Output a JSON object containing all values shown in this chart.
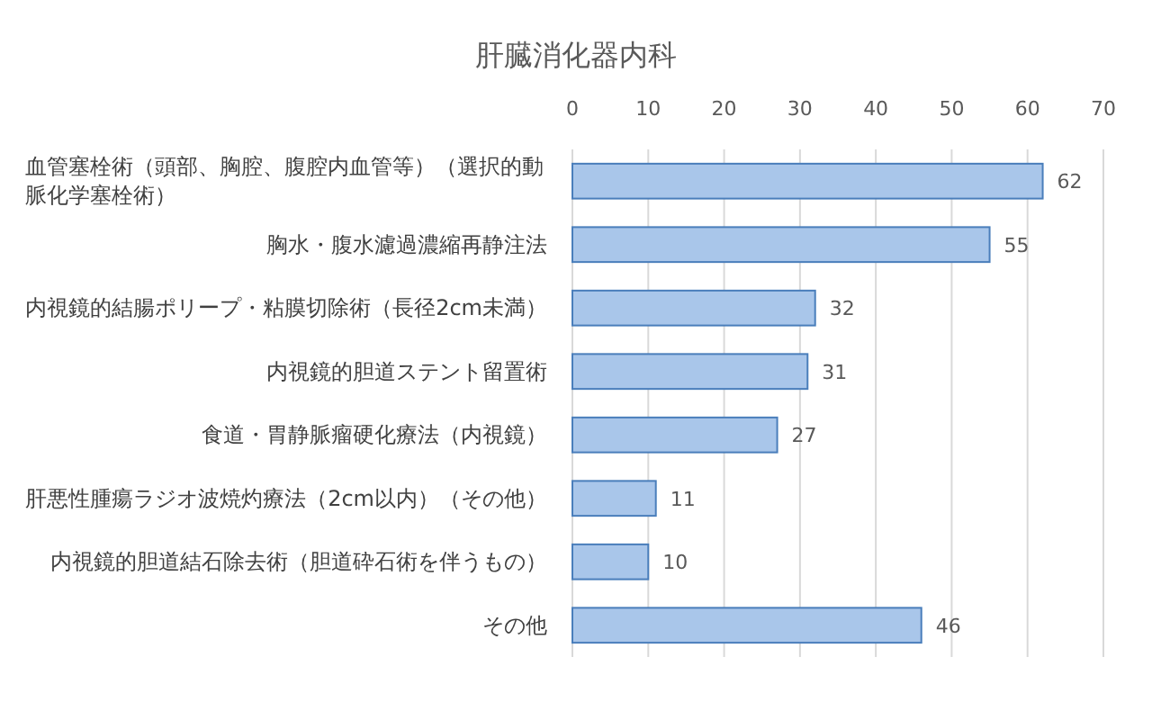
{
  "chart_data": {
    "type": "bar",
    "orientation": "horizontal",
    "title": "肝臓消化器内科",
    "categories": [
      "血管塞栓術（頭部、胸腔、腹腔内血管等）（選択的動脈化学塞栓術）",
      "胸水・腹水濾過濃縮再静注法",
      "内視鏡的結腸ポリープ・粘膜切除術（長径2cm未満）",
      "内視鏡的胆道ステント留置術",
      "食道・胃静脈瘤硬化療法（内視鏡）",
      "肝悪性腫瘍ラジオ波焼灼療法（2cm以内）（その他）",
      "内視鏡的胆道結石除去術（胆道砕石術を伴うもの）",
      "その他"
    ],
    "values": [
      62,
      55,
      32,
      31,
      27,
      11,
      10,
      46
    ],
    "color": "#a9c6ea",
    "xlim": [
      0,
      70
    ],
    "xticks": [
      0,
      10,
      20,
      30,
      40,
      50,
      60,
      70
    ],
    "grid": "x",
    "data_labels": true
  }
}
